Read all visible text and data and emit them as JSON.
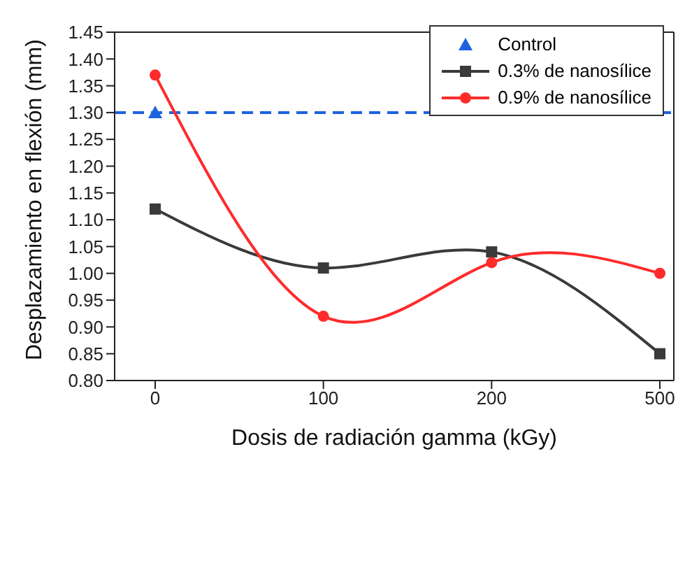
{
  "chart_data": {
    "type": "line",
    "xlabel": "Dosis de radiación gamma (kGy)",
    "ylabel": "Desplazamiento en flexión (mm)",
    "categories": [
      "0",
      "100",
      "200",
      "500"
    ],
    "series": [
      {
        "name": "Control",
        "type": "scatter",
        "marker": "triangle",
        "color": "#1f62e0",
        "values": [
          1.3,
          null,
          null,
          null
        ]
      },
      {
        "name": "0.3% de nanosílice",
        "marker": "square",
        "color": "#3a3a3a",
        "values": [
          1.12,
          1.01,
          1.04,
          0.85
        ]
      },
      {
        "name": "0.9% de nanosílice",
        "marker": "circle",
        "color": "#ff2b2b",
        "values": [
          1.37,
          0.92,
          1.02,
          1.0
        ]
      }
    ],
    "ref_lines": [
      {
        "axis": "y",
        "value": 1.3,
        "color": "#1f62e0",
        "line_style": "dashed"
      }
    ],
    "ylim": [
      0.8,
      1.45
    ],
    "yticks": [
      {
        "value": 0.8,
        "label": "0.80"
      },
      {
        "value": 0.85,
        "label": "0.85"
      },
      {
        "value": 0.9,
        "label": "0.90"
      },
      {
        "value": 0.95,
        "label": "0.95"
      },
      {
        "value": 1.0,
        "label": "1.00"
      },
      {
        "value": 1.05,
        "label": "1.05"
      },
      {
        "value": 1.1,
        "label": "1.10"
      },
      {
        "value": 1.15,
        "label": "1.15"
      },
      {
        "value": 1.2,
        "label": "1.20"
      },
      {
        "value": 1.25,
        "label": "1.25"
      },
      {
        "value": 1.3,
        "label": "1.30"
      },
      {
        "value": 1.35,
        "label": "1.35"
      },
      {
        "value": 1.4,
        "label": "1.40"
      },
      {
        "value": 1.45,
        "label": "1.45"
      }
    ],
    "legend": "top right",
    "grid": false
  }
}
